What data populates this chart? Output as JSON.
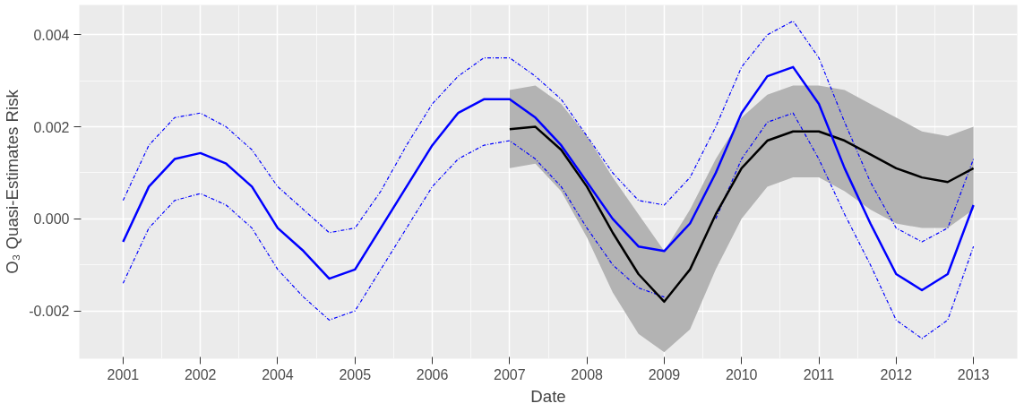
{
  "chart_data": {
    "type": "line",
    "xlabel": "Date",
    "ylabel": "O₃ Quasi-Estimates Risk",
    "grid": true,
    "categories": [
      "2001",
      null,
      null,
      "2002",
      null,
      null,
      "2004",
      null,
      null,
      "2005",
      null,
      null,
      "2006",
      null,
      null,
      "2007",
      null,
      null,
      "2008",
      null,
      null,
      "2009",
      null,
      null,
      "2010",
      null,
      null,
      "2011",
      null,
      null,
      "2012",
      null,
      null,
      "2013"
    ],
    "ylim": [
      -0.00304,
      0.00465
    ],
    "yticks": [
      {
        "value": -0.002,
        "label": "-0.002"
      },
      {
        "value": 0,
        "label": "0.000"
      },
      {
        "value": 0.002,
        "label": "0.002"
      },
      {
        "value": 0.004,
        "label": "0.004"
      }
    ],
    "series": [
      {
        "color": "#0000ff",
        "line_style": "dashed",
        "values": [
          0.0004,
          0.0016,
          0.0022,
          0.0023,
          0.002,
          0.0015,
          0.0007,
          0.0002,
          -0.0003,
          -0.0002,
          0.0006,
          0.0016,
          0.0025,
          0.0031,
          0.0035,
          0.0035,
          0.0031,
          0.0026,
          0.0018,
          0.001,
          0.0004,
          0.0003,
          0.0009,
          0.002,
          0.0033,
          0.004,
          0.0043,
          0.0035,
          0.0021,
          0.0008,
          -0.0002,
          -0.0005,
          -0.0002,
          0.0013
        ]
      },
      {
        "color": "#0000ff",
        "line_style": "dashed",
        "values": [
          -0.0014,
          -0.0002,
          0.0004,
          0.00055,
          0.0003,
          -0.0002,
          -0.0011,
          -0.0017,
          -0.0022,
          -0.002,
          -0.0011,
          -0.0002,
          0.0007,
          0.0013,
          0.0016,
          0.0017,
          0.0013,
          0.0007,
          -0.0002,
          -0.001,
          -0.0015,
          -0.0017,
          null,
          0.0,
          0.0013,
          0.0021,
          0.0023,
          0.0013,
          0.0001,
          -0.001,
          -0.0022,
          -0.0026,
          -0.0022,
          -0.0006
        ]
      },
      {
        "color": "#000000",
        "line_style": "solid",
        "values": [
          null,
          null,
          null,
          null,
          null,
          null,
          null,
          null,
          null,
          null,
          null,
          null,
          null,
          null,
          null,
          0.00195,
          0.002,
          0.0015,
          0.0007,
          -0.0003,
          -0.0012,
          -0.0018,
          -0.0011,
          0.0001,
          0.0011,
          0.0017,
          0.0019,
          0.0019,
          0.0017,
          0.0014,
          0.0011,
          0.0009,
          0.0008,
          0.0011
        ],
        "lower": [
          null,
          null,
          null,
          null,
          null,
          null,
          null,
          null,
          null,
          null,
          null,
          null,
          null,
          null,
          null,
          0.0011,
          0.0012,
          0.0006,
          -0.0004,
          -0.0016,
          -0.0025,
          -0.0029,
          -0.0024,
          -0.0011,
          0.0,
          0.0007,
          0.0009,
          0.0009,
          0.0006,
          0.0002,
          -0.0001,
          -0.0002,
          -0.0002,
          0.0002
        ],
        "upper": [
          null,
          null,
          null,
          null,
          null,
          null,
          null,
          null,
          null,
          null,
          null,
          null,
          null,
          null,
          null,
          0.0028,
          0.0029,
          0.0025,
          0.0018,
          0.0009,
          0.0001,
          -0.0007,
          0.0002,
          0.0013,
          0.0022,
          0.0027,
          0.0029,
          0.0029,
          0.0028,
          0.0025,
          0.0022,
          0.0019,
          0.0018,
          0.002
        ]
      },
      {
        "color": "#0000ff",
        "line_style": "solid",
        "values": [
          -0.0005,
          0.0007,
          0.0013,
          0.00143,
          0.0012,
          0.0007,
          -0.0002,
          -0.0007,
          -0.0013,
          -0.0011,
          -0.0002,
          0.0007,
          0.0016,
          0.0023,
          0.0026,
          0.0026,
          0.0022,
          0.0016,
          0.0008,
          0.0,
          -0.0006,
          -0.0007,
          -0.0001,
          0.001,
          0.0023,
          0.0031,
          0.0033,
          0.0025,
          0.0011,
          -0.0001,
          -0.0012,
          -0.00155,
          -0.0012,
          0.0003
        ]
      }
    ]
  }
}
